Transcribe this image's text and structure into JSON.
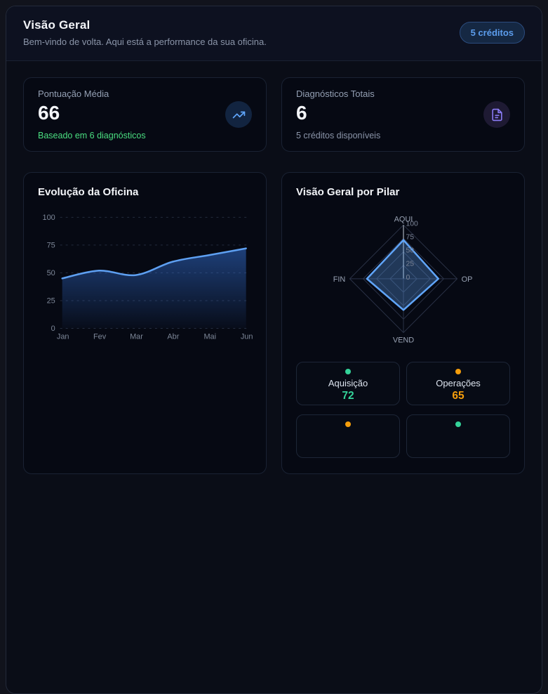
{
  "header": {
    "title": "Visão Geral",
    "subtitle": "Bem-vindo de volta. Aqui está a performance da sua oficina.",
    "credits_badge": "5 créditos"
  },
  "stats": [
    {
      "label": "Pontuação Média",
      "value": "66",
      "sub": "Baseado em 6 diagnósticos",
      "icon": "trending-up-icon",
      "icon_color": "#60a5fa",
      "sub_color": "#4ade80"
    },
    {
      "label": "Diagnósticos Totais",
      "value": "6",
      "sub": "5 créditos disponíveis",
      "icon": "file-text-icon",
      "icon_color": "#8b7cf6",
      "sub_color": "#8b95a9"
    }
  ],
  "pillar_stats": [
    {
      "label": "Aquisição",
      "value": "72",
      "color": "#34d399"
    },
    {
      "label": "Operações",
      "value": "65",
      "color": "#f59e0b"
    },
    {
      "label": "",
      "value": "",
      "color": "#f59e0b"
    },
    {
      "label": "",
      "value": "",
      "color": "#34d399"
    }
  ],
  "colors": {
    "accent_blue": "#60a5fa",
    "green": "#34d399",
    "orange": "#f59e0b",
    "purple": "#8b7cf6",
    "badge_text": "#5c9ded"
  },
  "chart_data": [
    {
      "type": "area",
      "title": "Evolução da Oficina",
      "x": [
        "Jan",
        "Fev",
        "Mar",
        "Abr",
        "Mai",
        "Jun"
      ],
      "values": [
        45,
        52,
        48,
        60,
        66,
        72
      ],
      "xlabel": "",
      "ylabel": "",
      "ylim": [
        0,
        100
      ],
      "yticks": [
        0,
        25,
        50,
        75,
        100
      ],
      "grid": "horizontal-dashed",
      "line_color": "#5ea0f2",
      "area_fill": "#3b82f6",
      "legend": "none"
    },
    {
      "type": "radar",
      "title": "Visão Geral por Pilar",
      "axes": [
        "AQUI",
        "OP",
        "VEND",
        "FIN"
      ],
      "values": [
        72,
        65,
        58,
        68
      ],
      "rings": [
        0,
        25,
        50,
        75,
        100
      ],
      "ring_max": 100,
      "stroke": "#60a5fa",
      "fill": "rgba(96,165,250,0.3)",
      "legend": "none"
    }
  ]
}
